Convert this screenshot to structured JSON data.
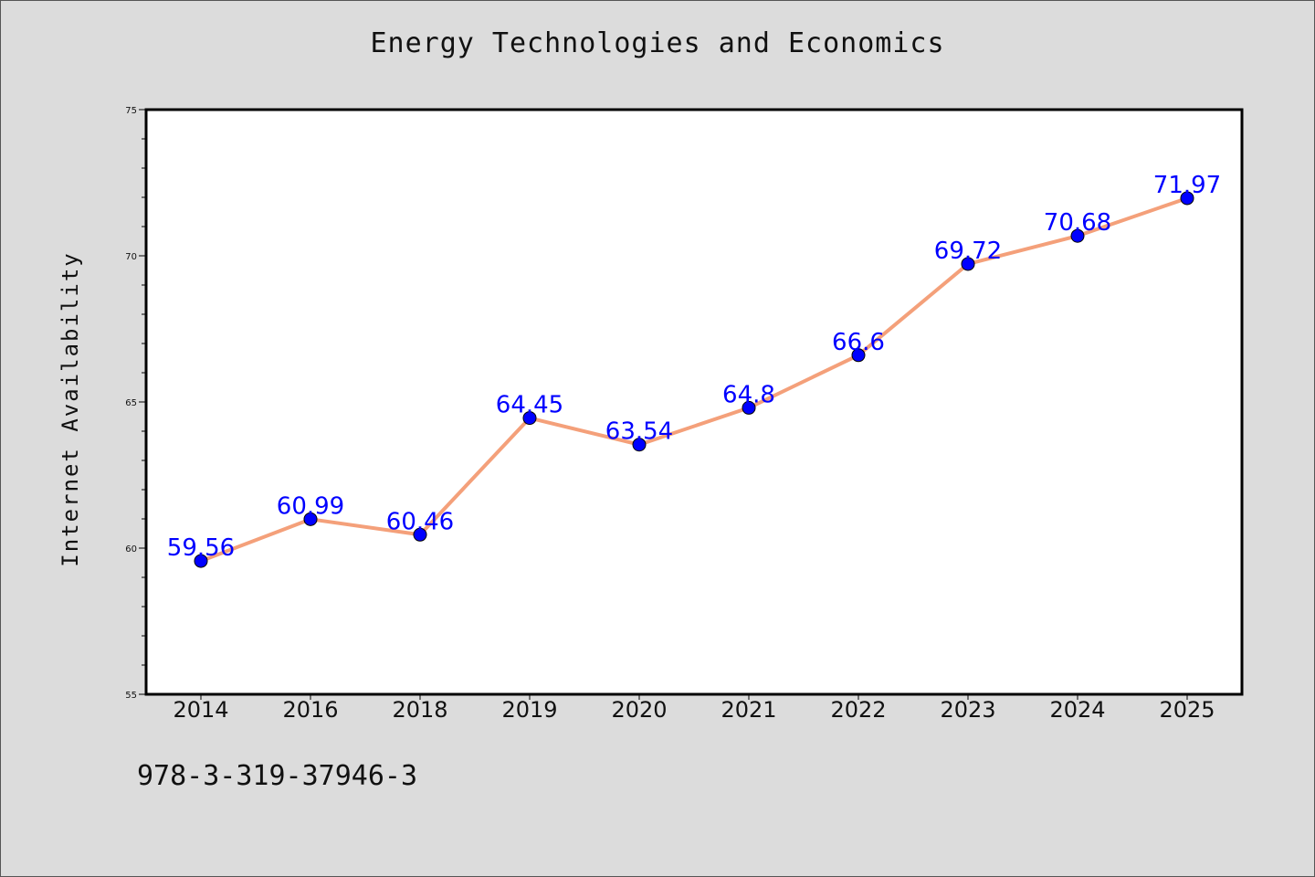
{
  "page": {
    "footer_code": "978-3-319-37946-3"
  },
  "chart_data": {
    "type": "line",
    "title": "Energy Technologies and Economics",
    "xlabel": "",
    "ylabel": "Internet Availability",
    "categories": [
      "2014",
      "2016",
      "2018",
      "2019",
      "2020",
      "2021",
      "2022",
      "2023",
      "2024",
      "2025"
    ],
    "series": [
      {
        "values": [
          59.56,
          60.99,
          60.46,
          64.45,
          63.54,
          64.8,
          66.6,
          69.72,
          70.68,
          71.97
        ],
        "data_labels": [
          "59.56",
          "60.99",
          "60.46",
          "64.45",
          "63.54",
          "64.8",
          "66.6",
          "69.72",
          "70.68",
          "71.97"
        ]
      }
    ],
    "ylim": [
      55,
      75
    ],
    "yticks": [
      55,
      60,
      65,
      70,
      75
    ],
    "grid": false,
    "colors": {
      "line": "#f4a07a",
      "marker": "#0000ff",
      "data_label": "#0000ff",
      "background": "#dcdcdc",
      "plot_background": "#ffffff"
    }
  }
}
